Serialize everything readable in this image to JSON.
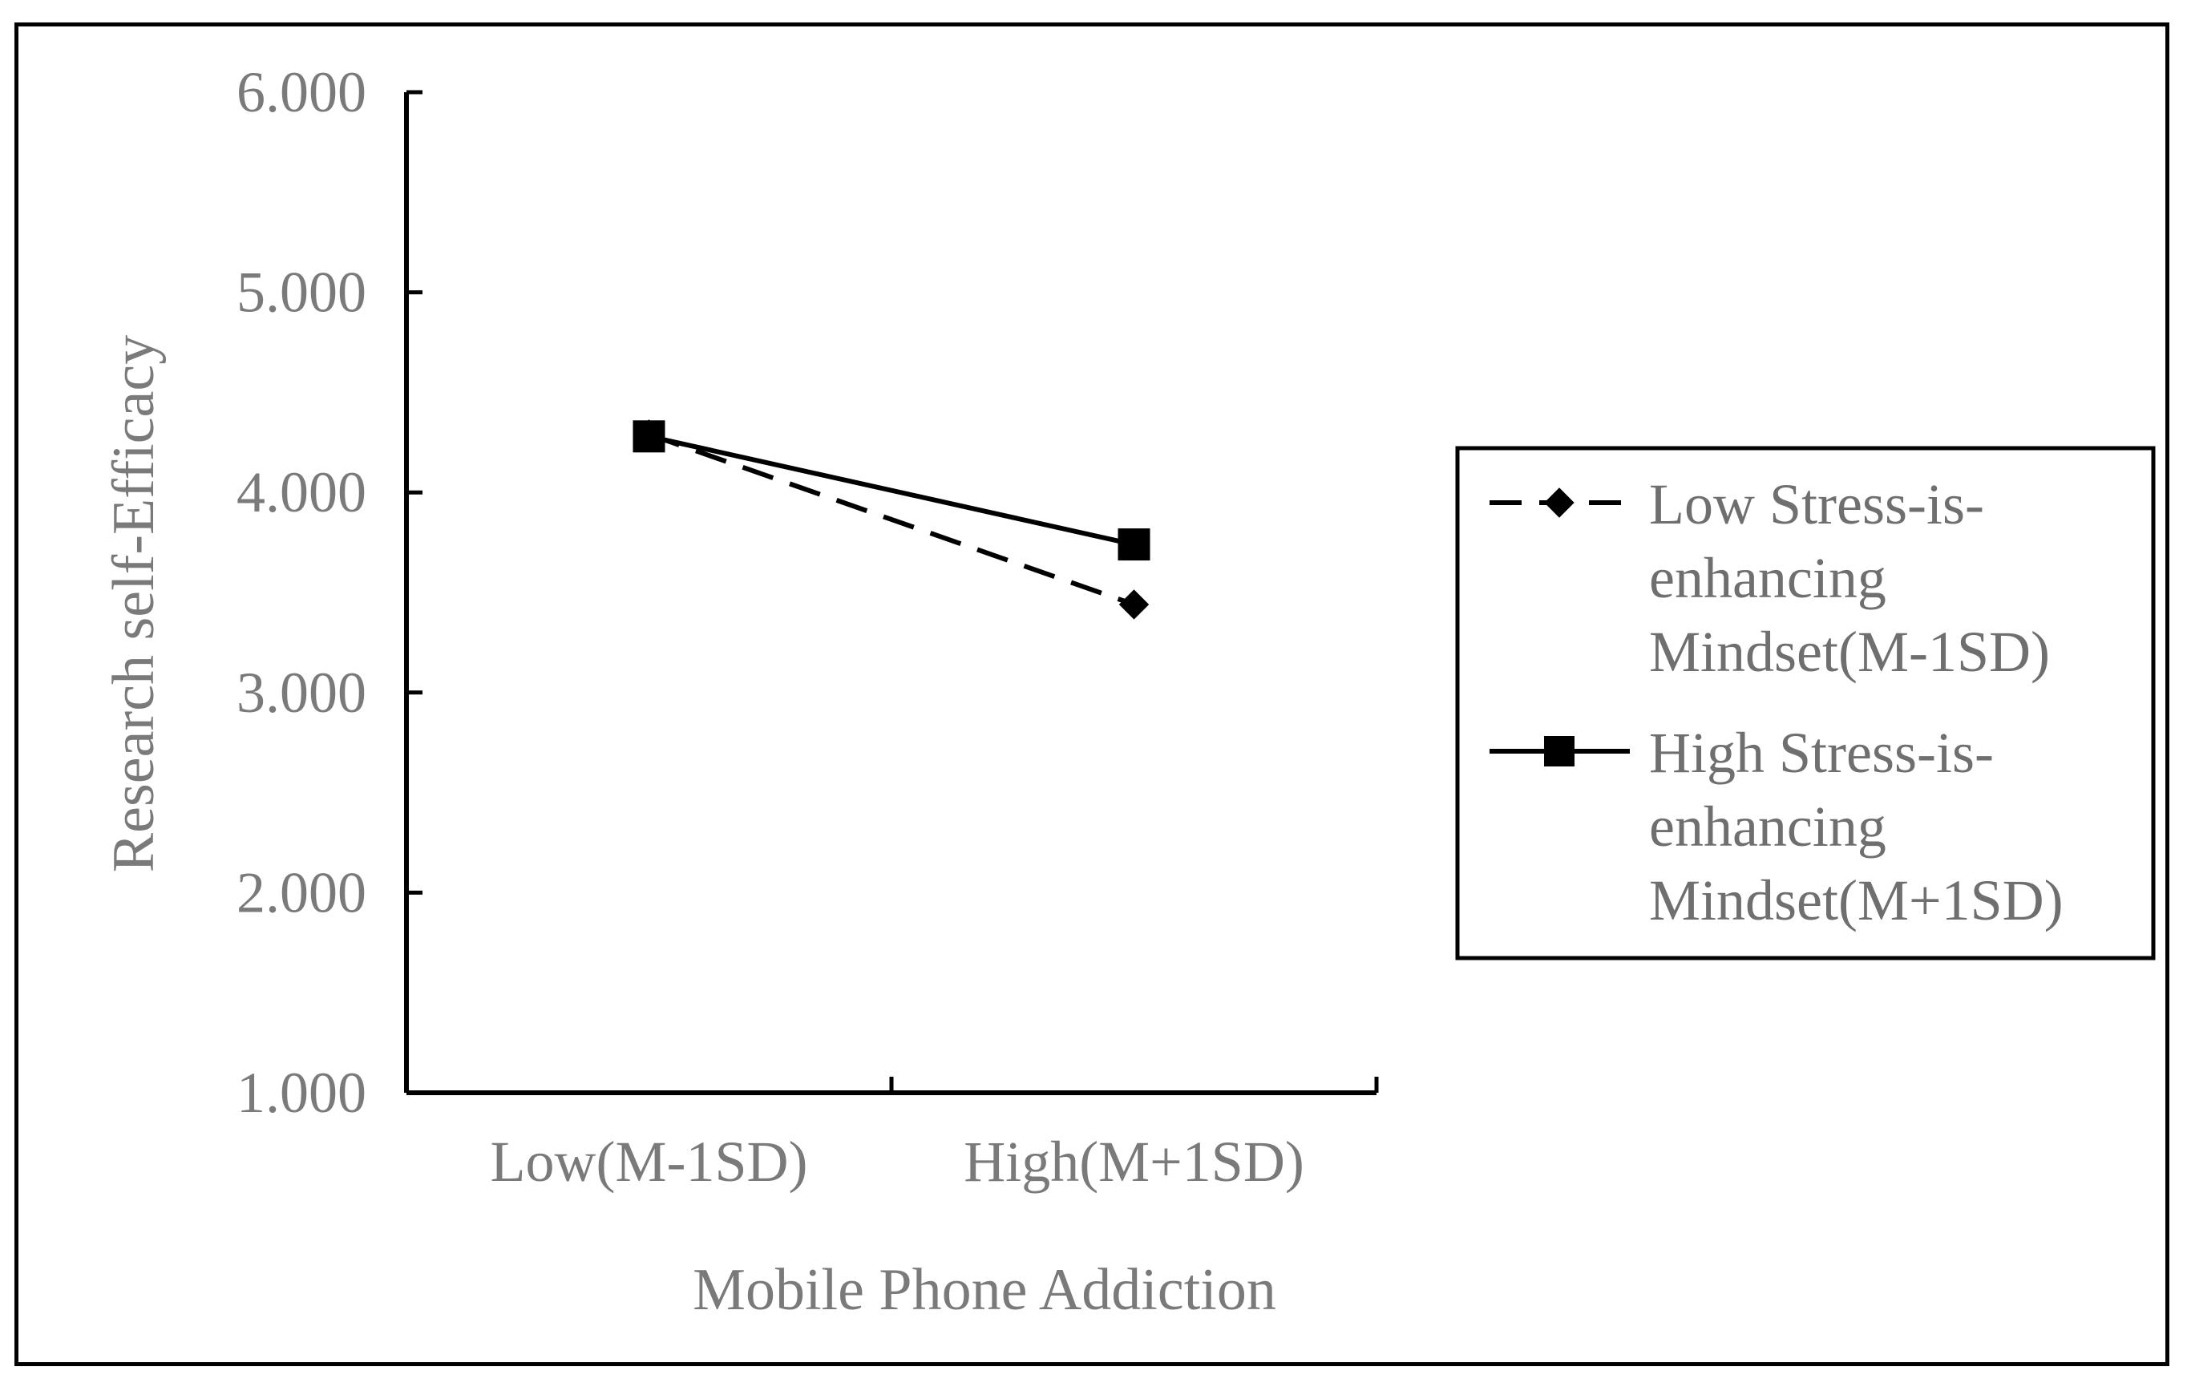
{
  "chart_data": {
    "type": "line",
    "title": "",
    "xlabel": "Mobile Phone Addiction",
    "ylabel": "Research self-Efficacy",
    "categories": [
      "Low(M-1SD)",
      "High(M+1SD)"
    ],
    "yticks": [
      "1.000",
      "2.000",
      "3.000",
      "4.000",
      "5.000",
      "6.000"
    ],
    "ylim": [
      1,
      6
    ],
    "grid": false,
    "legend_position": "right",
    "series": [
      {
        "name": "Low Stress-is-enhancing Mindset(M-1SD)",
        "legend_lines": [
          "Low Stress-is-",
          "enhancing",
          "Mindset(M-1SD)"
        ],
        "values": [
          4.29,
          3.44
        ],
        "line_style": "dashed",
        "marker": "diamond",
        "color": "#000000"
      },
      {
        "name": "High Stress-is-enhancing Mindset(M+1SD)",
        "legend_lines": [
          "High Stress-is-",
          "enhancing",
          "Mindset(M+1SD)"
        ],
        "values": [
          4.28,
          3.74
        ],
        "line_style": "solid",
        "marker": "square",
        "color": "#000000"
      }
    ]
  }
}
